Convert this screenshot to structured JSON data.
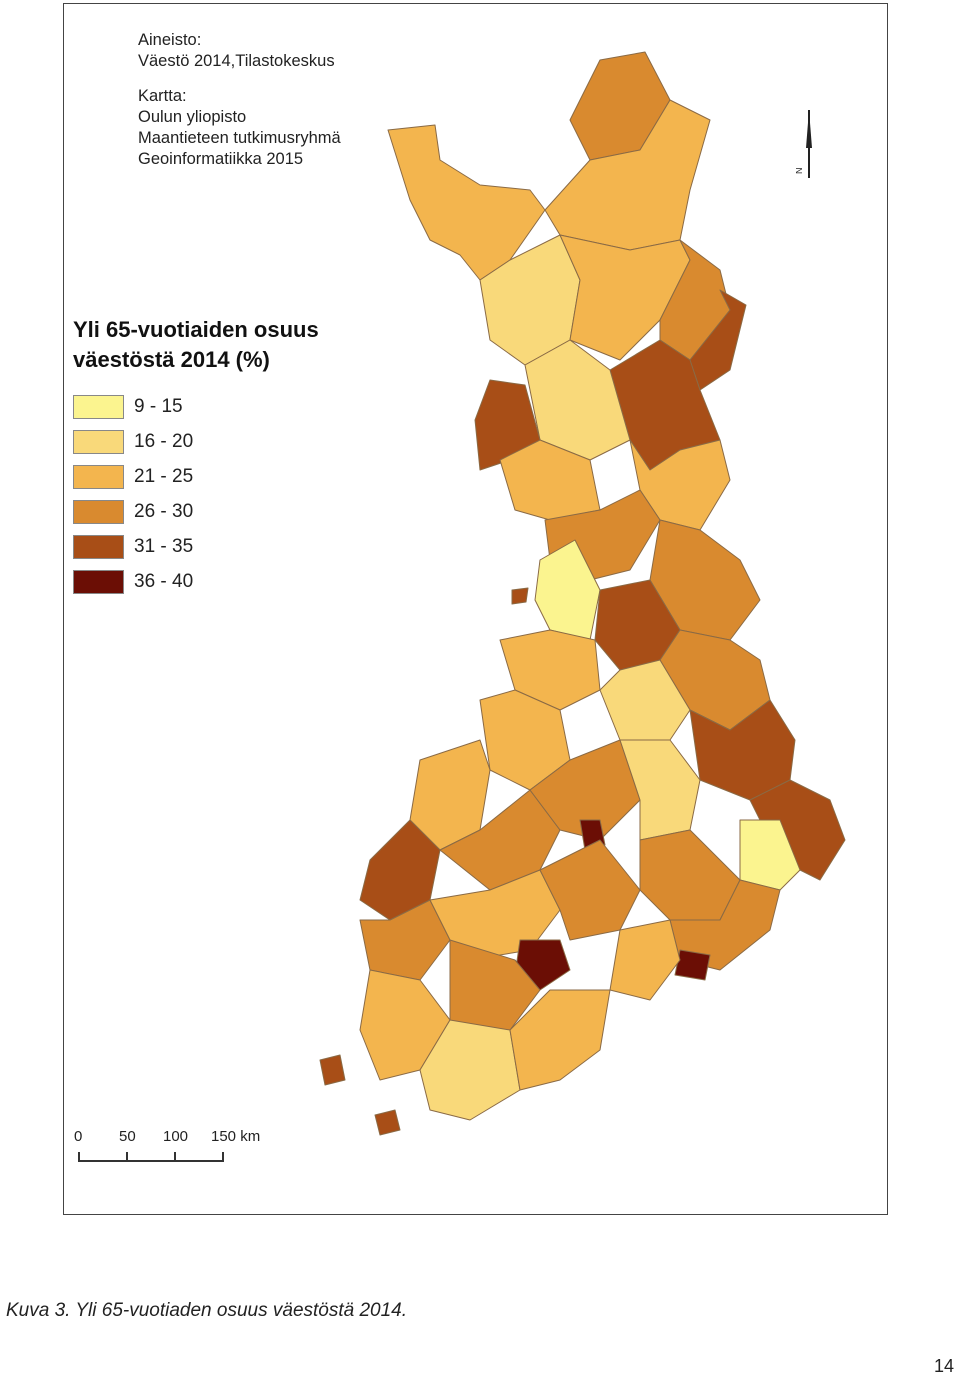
{
  "credits": {
    "data_heading": "Aineisto:",
    "data_source": "Väestö 2014,Tilastokeskus",
    "map_heading": "Kartta:",
    "map_org1": "Oulun yliopisto",
    "map_org2": "Maantieteen tutkimusryhmä",
    "map_org3": "Geoinformatiikka 2015"
  },
  "legend": {
    "title_line1": "Yli 65-vuotiaiden osuus",
    "title_line2": "väestöstä 2014 (%)",
    "classes": [
      {
        "label": "9 - 15",
        "color": "#fbf48f"
      },
      {
        "label": "16 - 20",
        "color": "#f9d97a"
      },
      {
        "label": "21 - 25",
        "color": "#f3b54e"
      },
      {
        "label": "26 - 30",
        "color": "#d98a2f"
      },
      {
        "label": "31 - 35",
        "color": "#a84e17"
      },
      {
        "label": "36 - 40",
        "color": "#6b0e05"
      }
    ]
  },
  "north_arrow": {
    "label": "N"
  },
  "scale_bar": {
    "labels": [
      "0",
      "50",
      "100",
      "150 km"
    ]
  },
  "caption": "Kuva 3. Yli 65-vuotiaden osuus väestöstä 2014.",
  "page_number": "14"
}
